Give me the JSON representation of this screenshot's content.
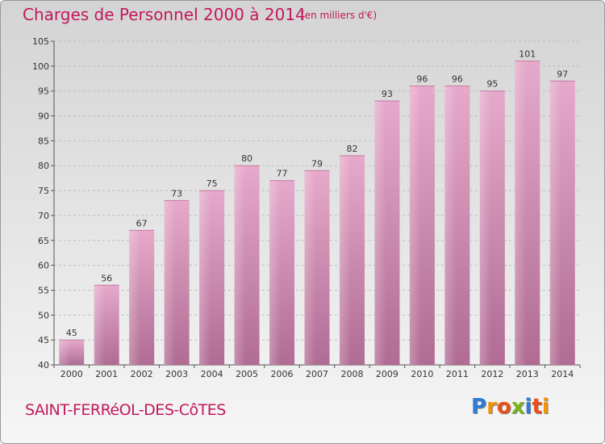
{
  "header": {
    "title": "Charges de Personnel 2000 à 2014",
    "subtitle": "(en milliers d'€)"
  },
  "footer": {
    "place": "SAINT-FERRéOL-DES-CôTES",
    "brand": "Proxiti",
    "brand_letters": [
      {
        "ch": "P",
        "color": "#2e7bd6"
      },
      {
        "ch": "r",
        "color": "#f39200"
      },
      {
        "ch": "o",
        "color": "#e94e1b"
      },
      {
        "ch": "x",
        "color": "#7ab51d"
      },
      {
        "ch": "i",
        "color": "#2e7bd6"
      },
      {
        "ch": "t",
        "color": "#e94e1b"
      },
      {
        "ch": "i",
        "color": "#f39200"
      }
    ]
  },
  "chart_data": {
    "type": "bar",
    "title": "Charges de Personnel 2000 à 2014",
    "subtitle": "(en milliers d'€)",
    "categories": [
      "2000",
      "2001",
      "2002",
      "2003",
      "2004",
      "2005",
      "2006",
      "2007",
      "2008",
      "2009",
      "2010",
      "2011",
      "2012",
      "2013",
      "2014"
    ],
    "values": [
      45,
      56,
      67,
      73,
      75,
      80,
      77,
      79,
      82,
      93,
      96,
      96,
      95,
      101,
      97
    ],
    "ylim": [
      40,
      105
    ],
    "yticks": [
      40,
      45,
      50,
      55,
      60,
      65,
      70,
      75,
      80,
      85,
      90,
      95,
      100,
      105
    ],
    "grid": true,
    "bar_color": "#d98fb8"
  }
}
